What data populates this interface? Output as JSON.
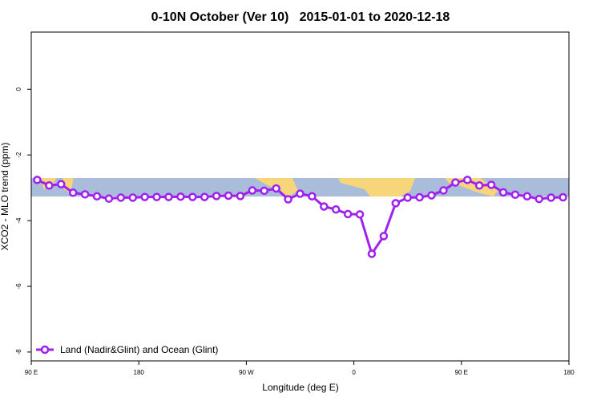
{
  "chart_data": {
    "type": "line",
    "title": "0-10N October (Ver 10)   2015-01-01 to 2020-12-18",
    "x_label": "Longitude (deg E)",
    "y_label": "XCO2 - MLO trend (ppm)",
    "x": [
      95,
      105,
      115,
      125,
      135,
      145,
      155,
      165,
      175,
      185,
      195,
      205,
      215,
      225,
      235,
      245,
      255,
      265,
      275,
      285,
      295,
      305,
      315,
      325,
      335,
      345,
      355,
      365,
      375,
      385,
      395,
      405,
      415,
      425,
      435,
      445,
      455,
      465,
      475,
      485,
      495,
      505,
      515,
      525,
      535
    ],
    "series": [
      {
        "name": "Land (Nadir&Glint) and Ocean (Glint)",
        "color": "#a020f0",
        "values": [
          -2.76,
          -2.93,
          -2.89,
          -3.15,
          -3.2,
          -3.26,
          -3.33,
          -3.3,
          -3.3,
          -3.28,
          -3.28,
          -3.28,
          -3.27,
          -3.28,
          -3.28,
          -3.25,
          -3.24,
          -3.25,
          -3.08,
          -3.09,
          -3.02,
          -3.35,
          -3.18,
          -3.26,
          -3.57,
          -3.66,
          -3.8,
          -3.81,
          -5.01,
          -4.47,
          -3.47,
          -3.3,
          -3.29,
          -3.23,
          -3.08,
          -2.84,
          -2.76,
          -2.93,
          -2.91,
          -3.14,
          -3.21,
          -3.26,
          -3.34,
          -3.3,
          -3.29
        ]
      }
    ],
    "xlim": [
      90,
      540
    ],
    "xticks": [
      {
        "value": 90,
        "label": "90 E"
      },
      {
        "value": 180,
        "label": "180"
      },
      {
        "value": 270,
        "label": "90 W"
      },
      {
        "value": 360,
        "label": "0"
      },
      {
        "value": 450,
        "label": "90 E"
      },
      {
        "value": 540,
        "label": "180"
      }
    ],
    "ylim": [
      -8.27,
      1.74
    ],
    "yticks": [
      0,
      -2,
      -4,
      -6,
      -8
    ],
    "legend": "bottom-left"
  }
}
